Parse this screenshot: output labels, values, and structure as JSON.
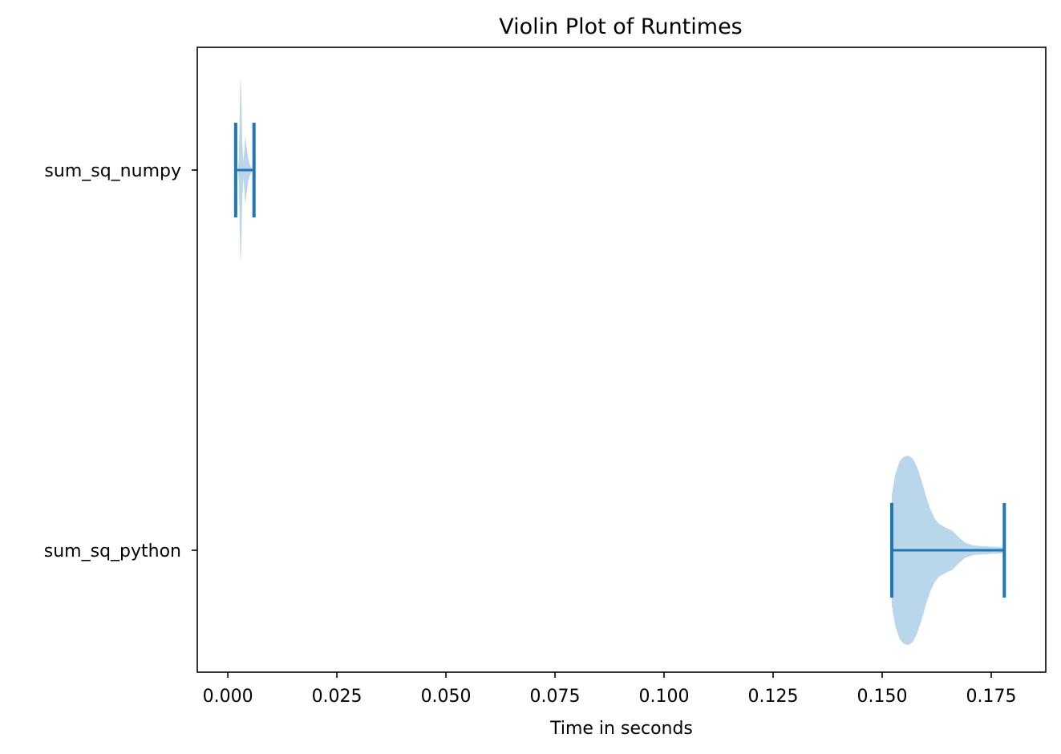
{
  "chart_data": {
    "type": "violin",
    "orientation": "horizontal",
    "title": "Violin Plot of Runtimes",
    "xlabel": "Time in seconds",
    "ylabel": "",
    "xlim": [
      -0.007,
      0.1875
    ],
    "x_ticks": [
      "0.000",
      "0.025",
      "0.050",
      "0.075",
      "0.100",
      "0.125",
      "0.150",
      "0.175"
    ],
    "grid": false,
    "fill_color": "#bad6ea",
    "line_color": "#1f77b4",
    "categories": [
      "sum_sq_numpy",
      "sum_sq_python"
    ],
    "series": [
      {
        "name": "sum_sq_numpy",
        "min": 0.0018,
        "max": 0.006,
        "mean": 0.004,
        "density": [
          [
            0.0023,
            0.0
          ],
          [
            0.0025,
            0.1
          ],
          [
            0.0027,
            0.5
          ],
          [
            0.0029,
            1.0
          ],
          [
            0.0031,
            0.8
          ],
          [
            0.0033,
            0.3
          ],
          [
            0.0036,
            0.08
          ],
          [
            0.004,
            0.36
          ],
          [
            0.0043,
            0.25
          ],
          [
            0.0047,
            0.12
          ],
          [
            0.0051,
            0.05
          ],
          [
            0.0055,
            0.02
          ],
          [
            0.0058,
            0.0
          ]
        ]
      },
      {
        "name": "sum_sq_python",
        "min": 0.1522,
        "max": 0.178,
        "mean": 0.178,
        "density": [
          [
            0.1522,
            0.58
          ],
          [
            0.153,
            0.8
          ],
          [
            0.154,
            0.94
          ],
          [
            0.155,
            0.99
          ],
          [
            0.156,
            1.0
          ],
          [
            0.157,
            0.97
          ],
          [
            0.158,
            0.88
          ],
          [
            0.159,
            0.74
          ],
          [
            0.16,
            0.58
          ],
          [
            0.161,
            0.44
          ],
          [
            0.162,
            0.34
          ],
          [
            0.163,
            0.28
          ],
          [
            0.1645,
            0.24
          ],
          [
            0.166,
            0.21
          ],
          [
            0.1675,
            0.14
          ],
          [
            0.169,
            0.08
          ],
          [
            0.171,
            0.05
          ],
          [
            0.174,
            0.04
          ],
          [
            0.1765,
            0.035
          ],
          [
            0.178,
            0.03
          ]
        ]
      }
    ]
  }
}
